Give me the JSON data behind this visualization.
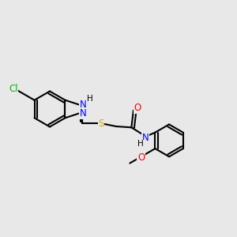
{
  "background_color": "#e8e8e8",
  "bond_color": "#000000",
  "bond_width": 1.5,
  "atom_colors": {
    "C": "#000000",
    "N": "#0000ff",
    "S": "#ccaa00",
    "O": "#ff0000",
    "Cl": "#00bb00",
    "H": "#000000"
  },
  "font_size": 8.5,
  "figsize": [
    3.0,
    3.0
  ],
  "dpi": 100,
  "xlim": [
    0,
    10
  ],
  "ylim": [
    0,
    10
  ]
}
